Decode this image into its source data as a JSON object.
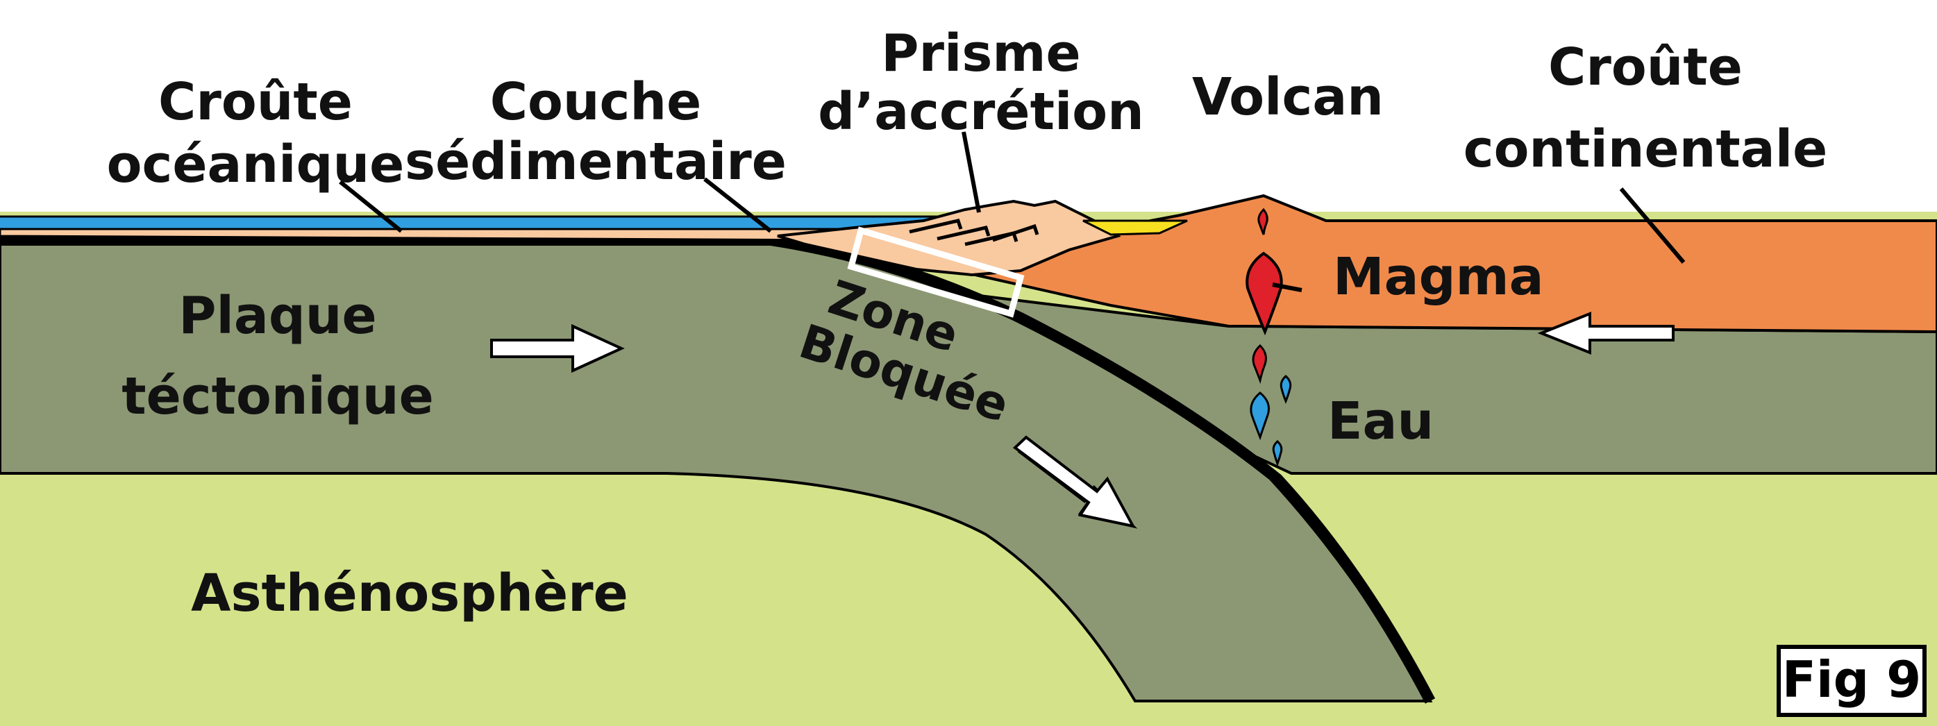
{
  "labels": {
    "croute_oceanique": [
      "Croûte",
      "océanique"
    ],
    "couche_sedimentaire": [
      "Couche",
      "sédimentaire"
    ],
    "prisme_accretion": [
      "Prisme",
      "d’accrétion"
    ],
    "volcan": "Volcan",
    "croute_continentale": [
      "Croûte",
      "continentale"
    ],
    "magma": "Magma",
    "zone_bloquee": [
      "Zone",
      "Bloquée"
    ],
    "plaque_tectonique": [
      "Plaque",
      "téctonique"
    ],
    "eau": "Eau",
    "asthenosphere": "Asthénosphère",
    "figure": "Fig 9"
  },
  "colors": {
    "asthenosphere": "#d4e28a",
    "plate": "#8c9874",
    "continental_crust": "#f08a4b",
    "sediment": "#f9c9a0",
    "ocean": "#2f9fe0",
    "magma": "#e0202a",
    "water_drop": "#2f9fe0",
    "volcanic_deposit": "#f7e020",
    "outline": "#000000"
  }
}
